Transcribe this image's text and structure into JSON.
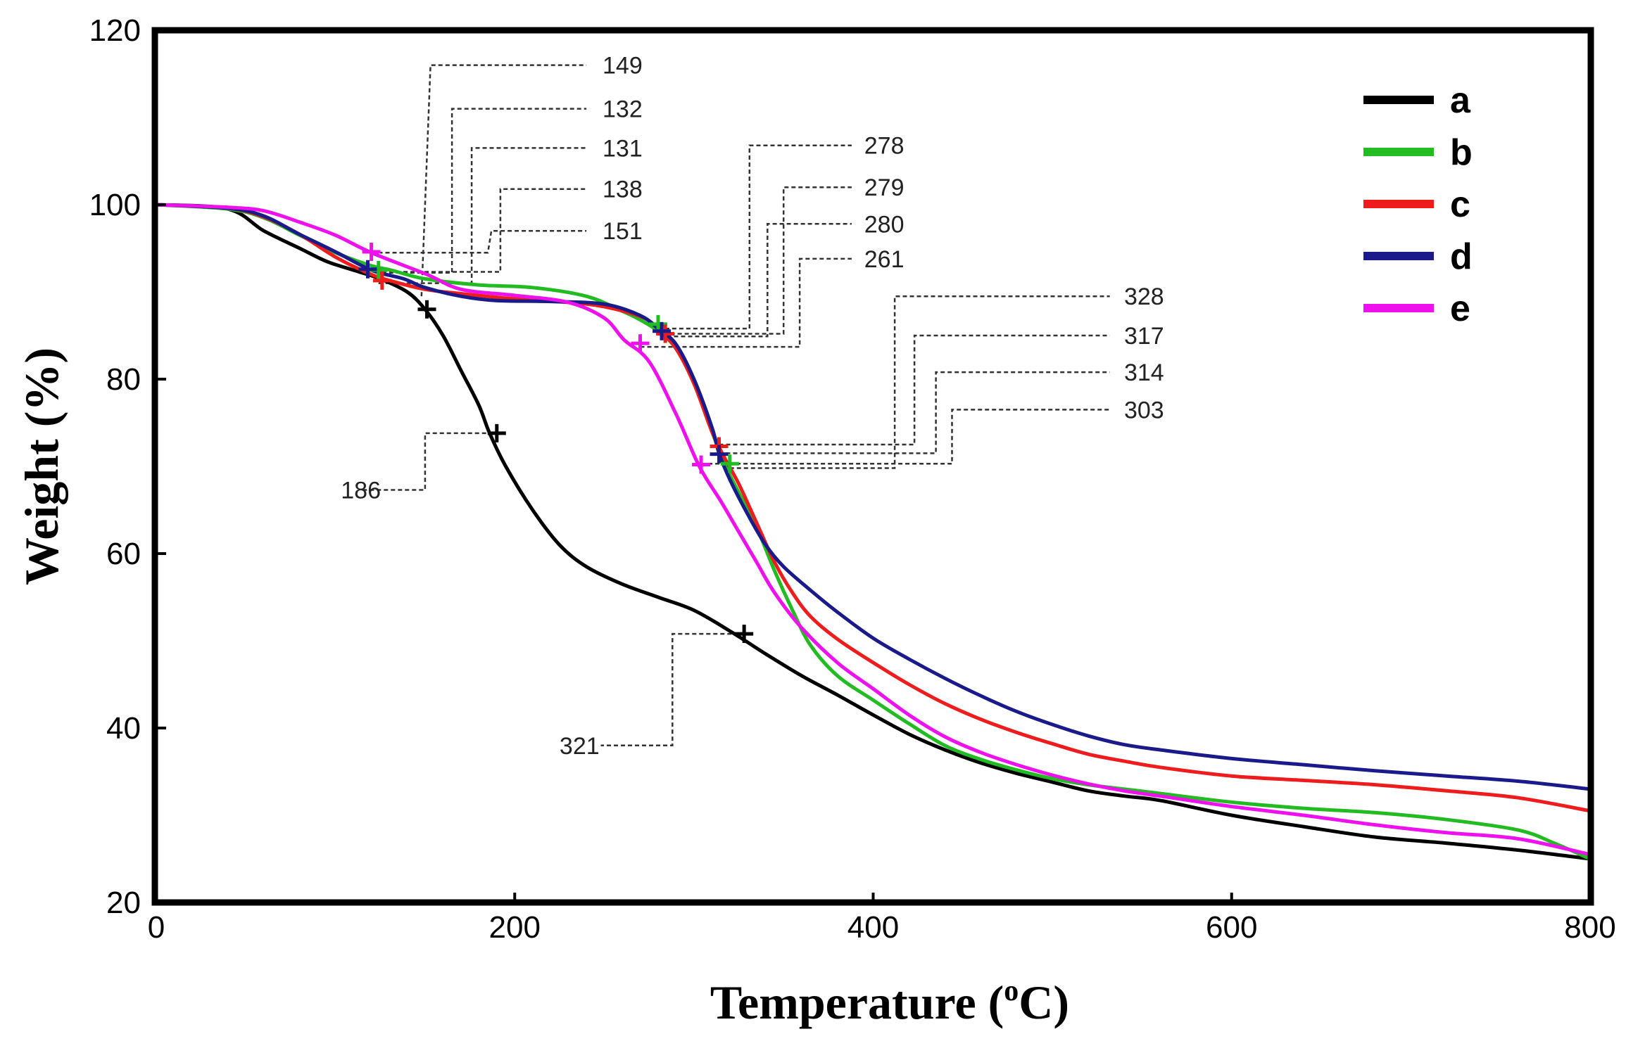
{
  "chart_data": {
    "type": "line",
    "title": "",
    "xlabel": "Temperature (°C)",
    "xlabel_parts": {
      "main": "Temperature (",
      "sup": "o",
      "end": "C)"
    },
    "ylabel": "Weight (%)",
    "xlim": [
      0,
      800
    ],
    "ylim": [
      20,
      120
    ],
    "xticks": [
      0,
      200,
      400,
      600,
      800
    ],
    "yticks": [
      20,
      40,
      60,
      80,
      100,
      120
    ],
    "xtick_labels": [
      "0",
      "200",
      "400",
      "600",
      "800"
    ],
    "ytick_labels": [
      "20",
      "40",
      "60",
      "80",
      "100",
      "120"
    ],
    "grid": false,
    "legend_position": "top-right",
    "series": [
      {
        "name": "a",
        "color": "#000000",
        "points": [
          [
            0,
            100
          ],
          [
            40,
            99.5
          ],
          [
            60,
            97
          ],
          [
            80,
            95
          ],
          [
            95,
            93.5
          ],
          [
            110,
            92.5
          ],
          [
            125,
            91.5
          ],
          [
            140,
            90
          ],
          [
            150,
            88
          ],
          [
            160,
            85
          ],
          [
            170,
            81
          ],
          [
            180,
            77
          ],
          [
            186,
            73.8
          ],
          [
            195,
            70
          ],
          [
            210,
            65
          ],
          [
            225,
            61
          ],
          [
            240,
            58.5
          ],
          [
            260,
            56.5
          ],
          [
            280,
            55
          ],
          [
            300,
            53.5
          ],
          [
            321,
            51
          ],
          [
            340,
            48.5
          ],
          [
            360,
            46
          ],
          [
            380,
            43.8
          ],
          [
            400,
            41.5
          ],
          [
            420,
            39.3
          ],
          [
            440,
            37.5
          ],
          [
            460,
            36
          ],
          [
            480,
            34.8
          ],
          [
            500,
            33.8
          ],
          [
            520,
            32.8
          ],
          [
            540,
            32.2
          ],
          [
            560,
            31.7
          ],
          [
            600,
            30
          ],
          [
            640,
            28.7
          ],
          [
            680,
            27.5
          ],
          [
            720,
            26.8
          ],
          [
            760,
            26
          ],
          [
            800,
            25
          ]
        ]
      },
      {
        "name": "b",
        "color": "#22bb22",
        "points": [
          [
            0,
            100
          ],
          [
            40,
            99.5
          ],
          [
            60,
            98.5
          ],
          [
            80,
            96.5
          ],
          [
            100,
            94.5
          ],
          [
            120,
            93
          ],
          [
            131,
            92.5
          ],
          [
            150,
            91.5
          ],
          [
            180,
            90.8
          ],
          [
            210,
            90.5
          ],
          [
            240,
            89.5
          ],
          [
            260,
            87.8
          ],
          [
            270,
            86.8
          ],
          [
            280,
            85.5
          ],
          [
            290,
            83.5
          ],
          [
            300,
            79.5
          ],
          [
            310,
            74
          ],
          [
            317,
            70.3
          ],
          [
            325,
            67
          ],
          [
            335,
            63
          ],
          [
            345,
            58
          ],
          [
            355,
            53.5
          ],
          [
            365,
            49.5
          ],
          [
            380,
            46
          ],
          [
            400,
            43.2
          ],
          [
            420,
            40.5
          ],
          [
            440,
            38
          ],
          [
            460,
            36.4
          ],
          [
            480,
            35.2
          ],
          [
            500,
            34.2
          ],
          [
            520,
            33.5
          ],
          [
            540,
            33
          ],
          [
            560,
            32.5
          ],
          [
            600,
            31.5
          ],
          [
            640,
            30.8
          ],
          [
            680,
            30.3
          ],
          [
            720,
            29.5
          ],
          [
            760,
            28.3
          ],
          [
            780,
            26.8
          ],
          [
            800,
            25
          ]
        ]
      },
      {
        "name": "c",
        "color": "#ee1c1c",
        "points": [
          [
            0,
            100
          ],
          [
            40,
            99.6
          ],
          [
            60,
            98.6
          ],
          [
            80,
            96.6
          ],
          [
            100,
            94
          ],
          [
            120,
            92
          ],
          [
            132,
            91.2
          ],
          [
            150,
            90.3
          ],
          [
            170,
            89.8
          ],
          [
            200,
            89.2
          ],
          [
            230,
            88.8
          ],
          [
            250,
            88.3
          ],
          [
            270,
            87.2
          ],
          [
            279,
            86
          ],
          [
            290,
            83.5
          ],
          [
            300,
            79.5
          ],
          [
            310,
            74
          ],
          [
            317,
            71
          ],
          [
            325,
            68
          ],
          [
            335,
            63.5
          ],
          [
            345,
            59
          ],
          [
            355,
            55.5
          ],
          [
            365,
            52.8
          ],
          [
            380,
            50.2
          ],
          [
            400,
            47.5
          ],
          [
            420,
            45
          ],
          [
            440,
            42.8
          ],
          [
            460,
            41
          ],
          [
            480,
            39.5
          ],
          [
            500,
            38.2
          ],
          [
            520,
            37
          ],
          [
            540,
            36.2
          ],
          [
            560,
            35.5
          ],
          [
            600,
            34.5
          ],
          [
            640,
            34
          ],
          [
            680,
            33.5
          ],
          [
            720,
            32.8
          ],
          [
            760,
            32
          ],
          [
            800,
            30.5
          ]
        ]
      },
      {
        "name": "d",
        "color": "#1a1a8a",
        "points": [
          [
            0,
            100
          ],
          [
            40,
            99.6
          ],
          [
            60,
            98.7
          ],
          [
            80,
            96.6
          ],
          [
            100,
            94.6
          ],
          [
            120,
            92.5
          ],
          [
            138,
            91.5
          ],
          [
            150,
            90.5
          ],
          [
            170,
            89.5
          ],
          [
            190,
            89
          ],
          [
            220,
            88.9
          ],
          [
            250,
            88.6
          ],
          [
            270,
            87.3
          ],
          [
            280,
            85.8
          ],
          [
            290,
            84
          ],
          [
            300,
            80
          ],
          [
            310,
            74.5
          ],
          [
            314,
            71.5
          ],
          [
            320,
            68.5
          ],
          [
            330,
            64.5
          ],
          [
            340,
            61
          ],
          [
            350,
            58.5
          ],
          [
            365,
            55.8
          ],
          [
            380,
            53.3
          ],
          [
            400,
            50.3
          ],
          [
            420,
            47.9
          ],
          [
            440,
            45.7
          ],
          [
            460,
            43.7
          ],
          [
            480,
            41.9
          ],
          [
            500,
            40.4
          ],
          [
            520,
            39.1
          ],
          [
            540,
            38.1
          ],
          [
            560,
            37.5
          ],
          [
            600,
            36.5
          ],
          [
            640,
            35.8
          ],
          [
            680,
            35.1
          ],
          [
            720,
            34.5
          ],
          [
            760,
            33.9
          ],
          [
            800,
            33
          ]
        ]
      },
      {
        "name": "e",
        "color": "#ee11ee",
        "points": [
          [
            0,
            100
          ],
          [
            40,
            99.7
          ],
          [
            60,
            99.3
          ],
          [
            80,
            98
          ],
          [
            100,
            96.5
          ],
          [
            120,
            94.5
          ],
          [
            151,
            92
          ],
          [
            170,
            90.3
          ],
          [
            200,
            89.6
          ],
          [
            230,
            88.8
          ],
          [
            250,
            87
          ],
          [
            261,
            84.5
          ],
          [
            275,
            82
          ],
          [
            290,
            76
          ],
          [
            303,
            70
          ],
          [
            315,
            66
          ],
          [
            325,
            62.5
          ],
          [
            335,
            59
          ],
          [
            345,
            55.5
          ],
          [
            360,
            51.5
          ],
          [
            380,
            47.5
          ],
          [
            400,
            44.5
          ],
          [
            420,
            41.5
          ],
          [
            440,
            39
          ],
          [
            460,
            37.2
          ],
          [
            480,
            35.8
          ],
          [
            500,
            34.6
          ],
          [
            520,
            33.6
          ],
          [
            540,
            32.8
          ],
          [
            560,
            32.2
          ],
          [
            600,
            31
          ],
          [
            640,
            30
          ],
          [
            680,
            28.9
          ],
          [
            720,
            28
          ],
          [
            760,
            27.3
          ],
          [
            800,
            25.5
          ]
        ]
      }
    ],
    "markers": [
      {
        "series": "a",
        "x": 151,
        "y": 88
      },
      {
        "series": "a",
        "x": 190,
        "y": 73.8
      },
      {
        "series": "a",
        "x": 328,
        "y": 50.8
      },
      {
        "series": "b",
        "x": 124,
        "y": 92.5
      },
      {
        "series": "c",
        "x": 126,
        "y": 91.3
      },
      {
        "series": "d",
        "x": 118,
        "y": 92.6
      },
      {
        "series": "e",
        "x": 120,
        "y": 94.6
      },
      {
        "series": "b",
        "x": 280,
        "y": 86.3
      },
      {
        "series": "c",
        "x": 284,
        "y": 85.2
      },
      {
        "series": "d",
        "x": 282,
        "y": 85.5
      },
      {
        "series": "e",
        "x": 270,
        "y": 84.1
      },
      {
        "series": "c",
        "x": 314,
        "y": 72.3
      },
      {
        "series": "d",
        "x": 314,
        "y": 71.4
      },
      {
        "series": "b",
        "x": 320,
        "y": 70.3
      },
      {
        "series": "e",
        "x": 304,
        "y": 70.2
      }
    ],
    "annotations": [
      {
        "label": "149",
        "label_x": 249,
        "label_y": 116.0,
        "path": [
          [
            148,
            89.5
          ],
          [
            153,
            116.0
          ],
          [
            240,
            116.0
          ]
        ]
      },
      {
        "label": "132",
        "label_x": 249,
        "label_y": 111.0,
        "path": [
          [
            126,
            92.2
          ],
          [
            165,
            92.2
          ],
          [
            165,
            111.0
          ],
          [
            240,
            111.0
          ]
        ]
      },
      {
        "label": "131",
        "label_x": 249,
        "label_y": 106.5,
        "path": [
          [
            124,
            91.0
          ],
          [
            176,
            91.0
          ],
          [
            176,
            106.5
          ],
          [
            240,
            106.5
          ]
        ]
      },
      {
        "label": "138",
        "label_x": 249,
        "label_y": 101.8,
        "path": [
          [
            130,
            92.3
          ],
          [
            192,
            92.3
          ],
          [
            192,
            101.8
          ],
          [
            240,
            101.8
          ]
        ]
      },
      {
        "label": "151",
        "label_x": 249,
        "label_y": 97.0,
        "path": [
          [
            120,
            94.5
          ],
          [
            185,
            94.5
          ],
          [
            187,
            97.0
          ],
          [
            240,
            97.0
          ]
        ]
      },
      {
        "label": "186",
        "label_x": 103,
        "label_y": 67.3,
        "path": [
          [
            188,
            73.8
          ],
          [
            150,
            73.8
          ],
          [
            150,
            67.3
          ],
          [
            115,
            67.3
          ]
        ]
      },
      {
        "label": "321",
        "label_x": 225,
        "label_y": 38.0,
        "path": [
          [
            321,
            50.8
          ],
          [
            288,
            50.8
          ],
          [
            288,
            38.0
          ],
          [
            248,
            38.0
          ]
        ]
      },
      {
        "label": "278",
        "label_x": 395,
        "label_y": 106.8,
        "path": [
          [
            280,
            85.8
          ],
          [
            331,
            85.8
          ],
          [
            331,
            106.8
          ],
          [
            388,
            106.8
          ]
        ]
      },
      {
        "label": "279",
        "label_x": 395,
        "label_y": 102.0,
        "path": [
          [
            283,
            85.2
          ],
          [
            350,
            85.2
          ],
          [
            350,
            102.0
          ],
          [
            388,
            102.0
          ]
        ]
      },
      {
        "label": "280",
        "label_x": 395,
        "label_y": 97.8,
        "path": [
          [
            281,
            84.9
          ],
          [
            341,
            84.9
          ],
          [
            341,
            97.8
          ],
          [
            388,
            97.8
          ]
        ]
      },
      {
        "label": "261",
        "label_x": 395,
        "label_y": 93.8,
        "path": [
          [
            270,
            83.7
          ],
          [
            359,
            83.7
          ],
          [
            359,
            93.8
          ],
          [
            388,
            93.8
          ]
        ]
      },
      {
        "label": "328",
        "label_x": 540,
        "label_y": 89.5,
        "path": [
          [
            320,
            69.8
          ],
          [
            412,
            69.8
          ],
          [
            412,
            89.5
          ],
          [
            532,
            89.5
          ]
        ]
      },
      {
        "label": "317",
        "label_x": 540,
        "label_y": 85.0,
        "path": [
          [
            314,
            72.5
          ],
          [
            423,
            72.5
          ],
          [
            423,
            85.0
          ],
          [
            532,
            85.0
          ]
        ]
      },
      {
        "label": "314",
        "label_x": 540,
        "label_y": 80.8,
        "path": [
          [
            314,
            71.5
          ],
          [
            435,
            71.5
          ],
          [
            435,
            80.8
          ],
          [
            532,
            80.8
          ]
        ]
      },
      {
        "label": "303",
        "label_x": 540,
        "label_y": 76.5,
        "path": [
          [
            304,
            70.3
          ],
          [
            444,
            70.3
          ],
          [
            444,
            76.5
          ],
          [
            532,
            76.5
          ]
        ]
      }
    ]
  }
}
